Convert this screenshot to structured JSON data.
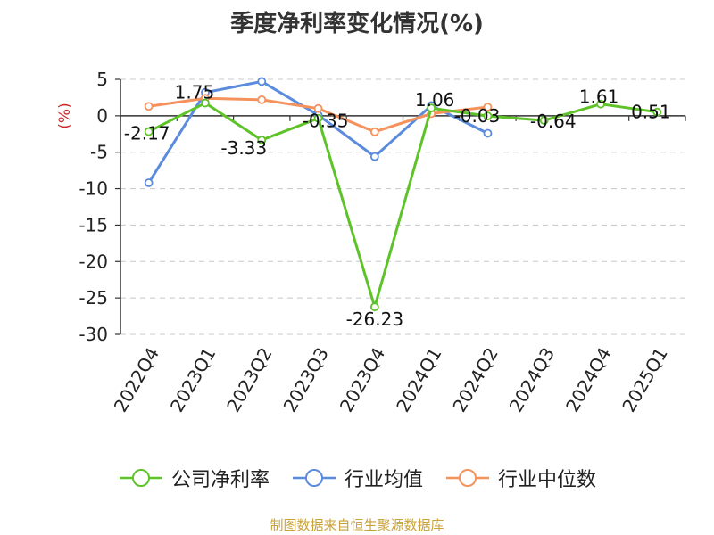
{
  "chart_data": {
    "type": "line",
    "title": "季度净利率变化情况(%)",
    "ylabel": "(%)",
    "categories": [
      "2022Q4",
      "2023Q1",
      "2023Q2",
      "2023Q3",
      "2023Q4",
      "2024Q1",
      "2024Q2",
      "2024Q3",
      "2024Q4",
      "2025Q1"
    ],
    "y_ticks": [
      "5",
      "0",
      "-5",
      "-10",
      "-15",
      "-20",
      "-25",
      "-30"
    ],
    "ylim": [
      -30,
      5
    ],
    "grid": true,
    "legend_position": "bottom",
    "series": [
      {
        "name": "公司净利率",
        "color": "#5ec229",
        "values": [
          -2.17,
          1.75,
          -3.33,
          -0.35,
          -26.23,
          1.06,
          -0.03,
          -0.64,
          1.61,
          0.51
        ],
        "labels": [
          "-2.17",
          "1.75",
          "-3.33",
          "-0.35",
          "-26.23",
          "1.06",
          "-0.03",
          "-0.64",
          "1.61",
          "0.51"
        ]
      },
      {
        "name": "行业均值",
        "color": "#5b8bdc",
        "values": [
          -9.2,
          3.2,
          4.7,
          0.1,
          -5.6,
          1.4,
          -2.4,
          null,
          null,
          null
        ]
      },
      {
        "name": "行业中位数",
        "color": "#f5925c",
        "values": [
          1.3,
          2.4,
          2.2,
          1.0,
          -2.2,
          0.3,
          1.2,
          null,
          null,
          null
        ]
      }
    ]
  },
  "source": {
    "text": "制图数据来自恒生聚源数据库",
    "color": "#c9a23b"
  }
}
